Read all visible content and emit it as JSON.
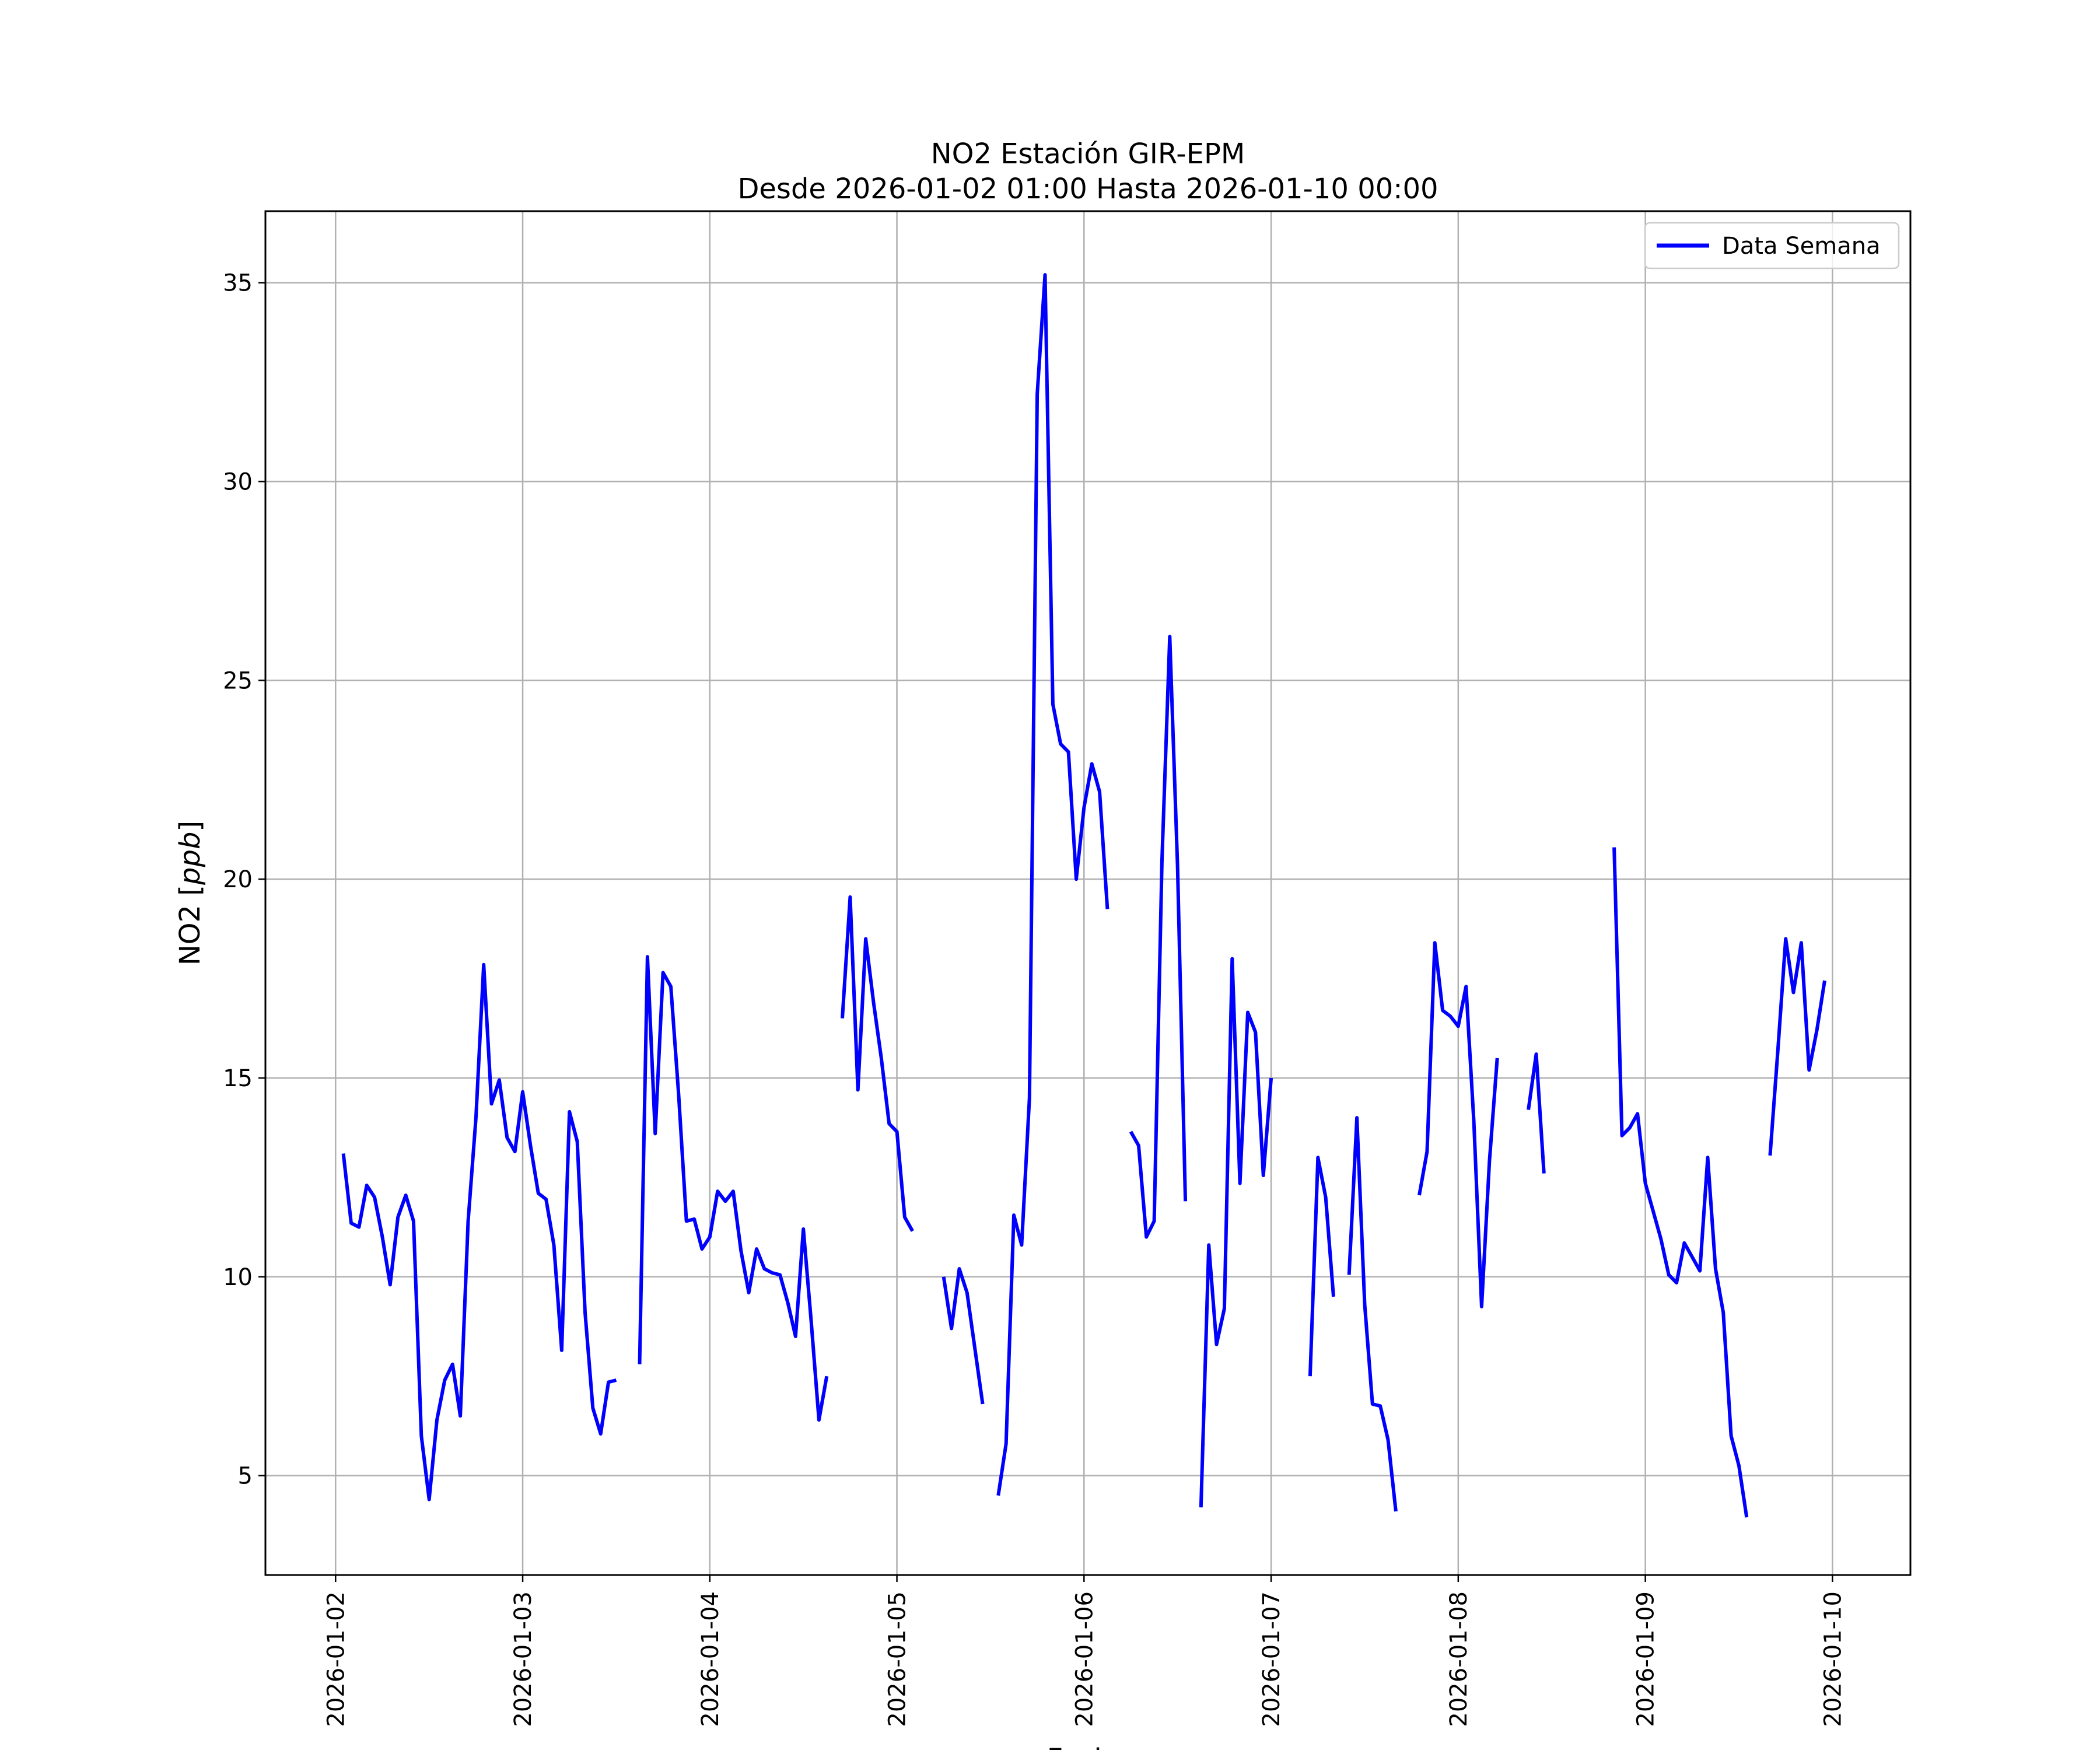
{
  "chart_data": {
    "type": "line",
    "title": "NO2 Estación GIR-EPM",
    "subtitle": "Desde 2026-01-02 01:00 Hasta 2026-01-10 00:00",
    "xlabel": "Fecha",
    "ylabel_main": "NO2 [",
    "ylabel_unit": "ppb",
    "ylabel_close": "]",
    "xlim": [
      "2026-01-01T15:00",
      "2026-01-10T10:00"
    ],
    "ylim": [
      2.5,
      36.8
    ],
    "x_ticks": [
      "2026-01-02",
      "2026-01-03",
      "2026-01-04",
      "2026-01-05",
      "2026-01-06",
      "2026-01-07",
      "2026-01-08",
      "2026-01-09",
      "2026-01-10"
    ],
    "y_ticks": [
      5,
      10,
      15,
      20,
      25,
      30,
      35
    ],
    "grid": true,
    "legend_position": "top-right",
    "color": "#0000ff",
    "series": [
      {
        "name": "Data Semana",
        "start": "2026-01-02T01:00",
        "interval_hours": 1,
        "values": [
          13.1,
          11.35,
          11.25,
          12.3,
          12.0,
          11.0,
          9.8,
          11.5,
          12.05,
          11.4,
          6.0,
          4.4,
          6.4,
          7.4,
          7.8,
          6.5,
          11.4,
          14.0,
          17.85,
          14.35,
          14.95,
          13.5,
          13.15,
          14.65,
          13.3,
          12.1,
          11.95,
          10.8,
          8.15,
          14.15,
          13.4,
          9.1,
          6.7,
          6.05,
          7.35,
          7.4,
          null,
          null,
          7.8,
          18.05,
          13.6,
          17.65,
          17.3,
          14.6,
          11.4,
          11.45,
          10.7,
          11.0,
          12.15,
          11.9,
          12.15,
          10.65,
          9.6,
          10.7,
          10.2,
          10.1,
          10.05,
          9.35,
          8.5,
          11.2,
          8.9,
          6.4,
          7.5,
          null,
          16.5,
          19.55,
          14.7,
          18.5,
          16.9,
          15.5,
          13.85,
          13.65,
          11.5,
          11.15,
          null,
          null,
          null,
          10.0,
          8.7,
          10.2,
          9.6,
          8.2,
          6.8,
          null,
          4.5,
          5.8,
          11.55,
          10.8,
          14.5,
          32.2,
          35.2,
          24.4,
          23.4,
          23.2,
          20.0,
          21.8,
          22.9,
          22.2,
          19.25,
          null,
          null,
          13.65,
          13.3,
          11.0,
          11.4,
          20.5,
          26.1,
          20.3,
          11.9,
          null,
          4.2,
          10.8,
          8.3,
          9.2,
          18.0,
          12.35,
          16.65,
          16.15,
          12.55,
          15.0,
          null,
          null,
          null,
          null,
          7.5,
          13.0,
          12.0,
          9.5,
          null,
          10.05,
          14.0,
          9.3,
          6.8,
          6.75,
          5.9,
          4.1,
          null,
          null,
          12.05,
          13.15,
          18.4,
          16.7,
          16.55,
          16.3,
          17.3,
          13.9,
          9.25,
          12.9,
          15.5,
          null,
          null,
          null,
          14.2,
          15.6,
          12.6,
          null,
          null,
          null,
          null,
          null,
          null,
          null,
          null,
          20.8,
          13.55,
          13.75,
          14.1,
          12.35,
          11.65,
          10.95,
          10.05,
          9.85,
          10.85,
          10.5,
          10.15,
          13.0,
          10.2,
          9.1,
          6.0,
          5.25,
          3.95,
          null,
          null,
          13.05,
          15.7,
          18.5,
          17.15,
          18.4,
          15.2,
          16.2,
          17.45
        ]
      }
    ]
  }
}
